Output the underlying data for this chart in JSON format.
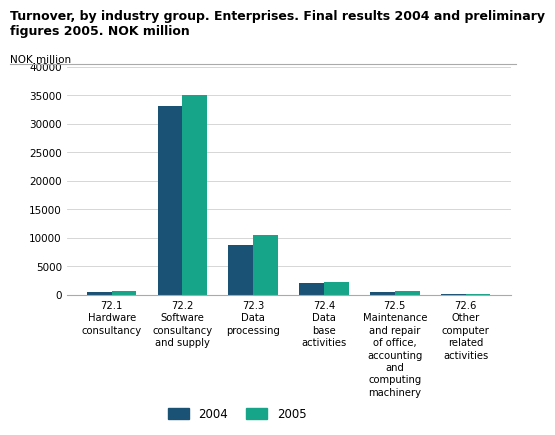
{
  "title_line1": "Turnover, by industry group. Enterprises. Final results 2004 and preliminary",
  "title_line2": "figures 2005. NOK million",
  "ylabel_text": "NOK million",
  "categories": [
    "72.1\nHardware\nconsultancy",
    "72.2\nSoftware\nconsultancy\nand supply",
    "72.3\nData\nprocessing",
    "72.4\nData\nbase\nactivities",
    "72.5\nMaintenance\nand repair\nof office,\naccounting\nand\ncomputing\nmachinery",
    "72.6\nOther\ncomputer\nrelated\nactivities"
  ],
  "values_2004": [
    500,
    33000,
    8800,
    2000,
    500,
    150
  ],
  "values_2005": [
    600,
    35000,
    10500,
    2200,
    600,
    180
  ],
  "color_2004": "#1a5276",
  "color_2005": "#17a589",
  "legend_2004": "2004",
  "legend_2005": "2005",
  "ylim": [
    0,
    40000
  ],
  "yticks": [
    0,
    5000,
    10000,
    15000,
    20000,
    25000,
    30000,
    35000,
    40000
  ],
  "bar_width": 0.35,
  "background_color": "#ffffff",
  "grid_color": "#d0d0d0"
}
